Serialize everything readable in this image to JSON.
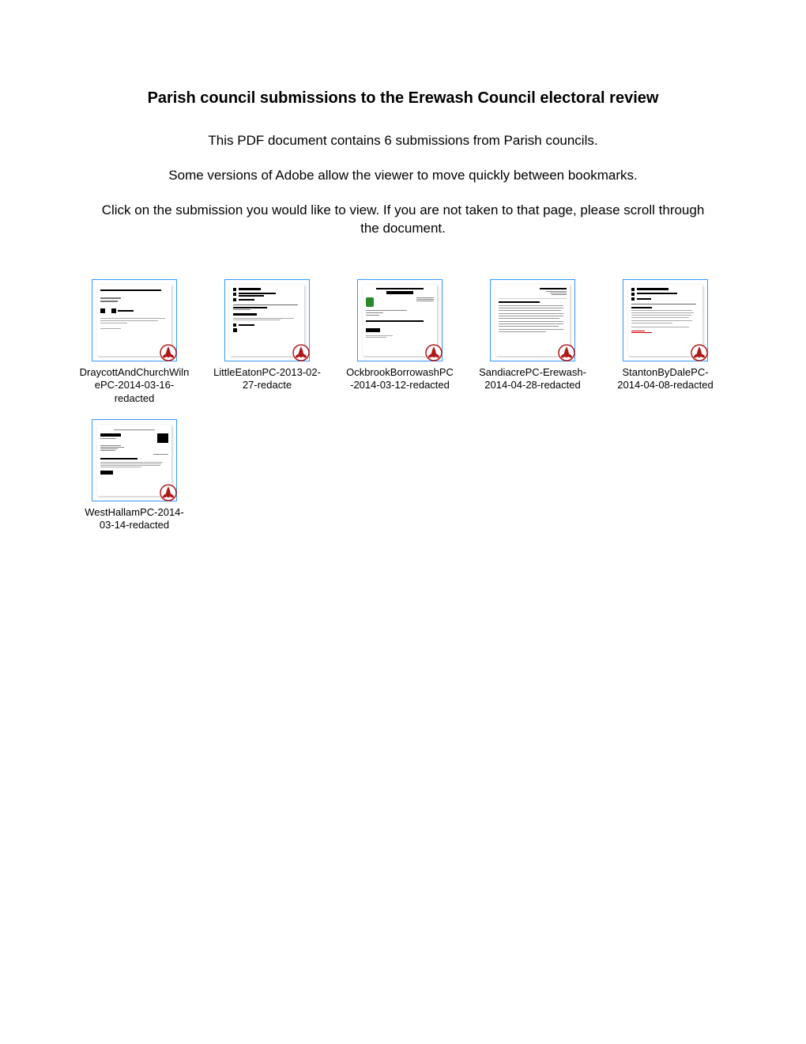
{
  "title": "Parish council submissions to the Erewash Council electoral review",
  "intro1": "This PDF document contains 6 submissions from Parish councils.",
  "intro2": "Some versions of Adobe allow the viewer to move quickly between bookmarks.",
  "intro3": "Click on the submission you would like to view. If you are not taken to that page, please scroll through the document.",
  "thumbnail_style": {
    "border_color": "#3399ff",
    "pdf_icon_stroke": "#b01818",
    "pdf_icon_fill": "#ffffff",
    "label_fontsize": 13,
    "label_color": "#000000"
  },
  "thumbnails": [
    {
      "label": "DraycottAndChurchWilnePC-2014-03-16-redacted",
      "variant": "a"
    },
    {
      "label": "LittleEatonPC-2013-02-27-redacte",
      "variant": "b"
    },
    {
      "label": "OckbrookBorrowashPC-2014-03-12-redacted",
      "variant": "c"
    },
    {
      "label": "SandiacrePC-Erewash-2014-04-28-redacted",
      "variant": "d"
    },
    {
      "label": "StantonByDalePC-2014-04-08-redacted",
      "variant": "e"
    },
    {
      "label": "WestHallamPC-2014-03-14-redacted",
      "variant": "f"
    }
  ]
}
